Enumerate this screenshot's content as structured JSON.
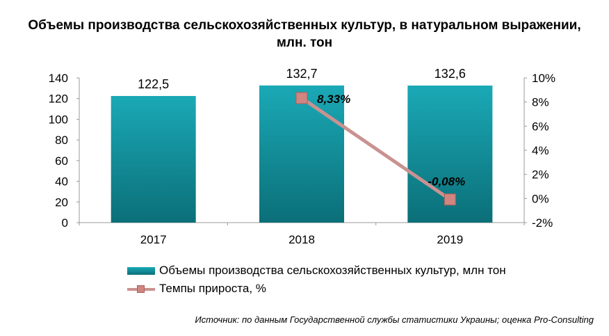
{
  "title_line1": "Объемы производства сельскохозяйственных культур, в натуральном выражении,",
  "title_line2": "млн. тон",
  "colors": {
    "bar_top": "#1aa9b6",
    "bar_bottom": "#0b6f78",
    "line": "#c99290",
    "marker": "#d08580"
  },
  "chart_data": {
    "type": "bar+line",
    "categories": [
      "2017",
      "2018",
      "2019"
    ],
    "series": [
      {
        "name": "Объемы производства сельскохозяйственных культур, млн тон",
        "type": "bar",
        "axis": "left",
        "values": [
          122.5,
          132.7,
          132.6
        ],
        "labels": [
          "122,5",
          "132,7",
          "132,6"
        ]
      },
      {
        "name": "Темпы прироста, %",
        "type": "line",
        "axis": "right",
        "values": [
          null,
          8.33,
          -0.08
        ],
        "labels": [
          "",
          "8,33%",
          "-0,08%"
        ]
      }
    ],
    "y_left": {
      "min": 0,
      "max": 140,
      "step": 20,
      "ticks": [
        "0",
        "20",
        "40",
        "60",
        "80",
        "100",
        "120",
        "140"
      ]
    },
    "y_right": {
      "min": -2,
      "max": 10,
      "step": 2,
      "ticks": [
        "-2%",
        "0%",
        "2%",
        "4%",
        "6%",
        "8%",
        "10%"
      ]
    },
    "grid": false,
    "legend_position": "bottom"
  },
  "legend": {
    "bar_label": "Объемы производства сельскохозяйственных культур, млн тон",
    "line_label": "Темпы прироста, %"
  },
  "source": "Источник: по данным Государственной службы статистики Украины; оценка Pro-Consulting"
}
